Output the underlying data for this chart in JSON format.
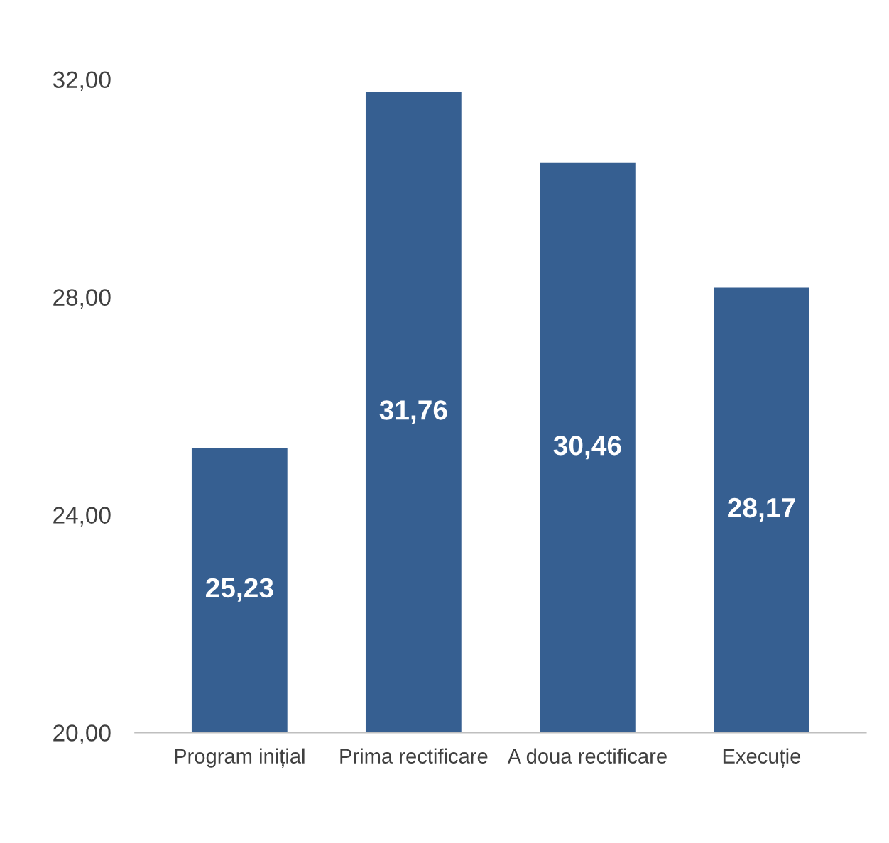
{
  "chart_data": {
    "type": "bar",
    "categories": [
      "Program inițial",
      "Prima rectificare",
      "A doua rectificare",
      "Execuție"
    ],
    "values": [
      25.23,
      31.76,
      30.46,
      28.17
    ],
    "value_labels": [
      "25,23",
      "31,76",
      "30,46",
      "28,17"
    ],
    "color": "#365f91",
    "ylim": [
      20,
      32
    ],
    "yticks": [
      {
        "value": 20,
        "label": "20,00"
      },
      {
        "value": 24,
        "label": "24,00"
      },
      {
        "value": 28,
        "label": "28,00"
      },
      {
        "value": 32,
        "label": "32,00"
      }
    ],
    "grid": false,
    "legend": false
  }
}
